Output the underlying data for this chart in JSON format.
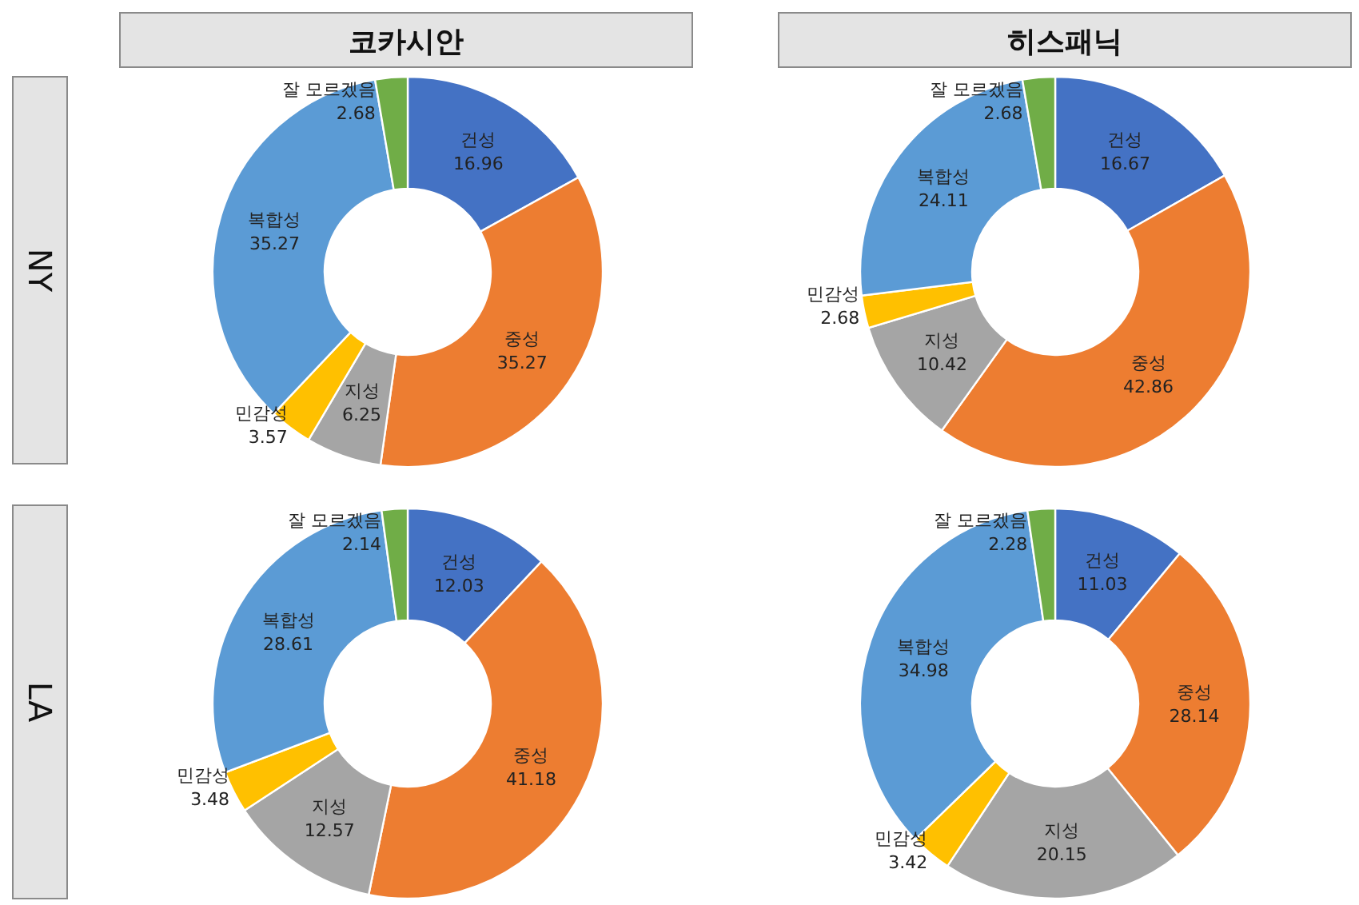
{
  "chart_data": [
    {
      "type": "donut",
      "title": "코카시안",
      "ylabel": "NY",
      "categories": [
        "건성",
        "중성",
        "지성",
        "민감성",
        "복합성",
        "잘 모르겠음"
      ],
      "values": [
        16.96,
        35.27,
        6.25,
        3.57,
        35.27,
        2.68
      ],
      "colors": [
        "#4472c4",
        "#ed7d31",
        "#a5a5a5",
        "#ffc000",
        "#5b9bd5",
        "#70ad47"
      ],
      "data_labels": true
    },
    {
      "type": "donut",
      "title": "히스패닉",
      "categories": [
        "건성",
        "중성",
        "지성",
        "민감성",
        "복합성",
        "잘 모르겠음"
      ],
      "values": [
        16.67,
        42.86,
        10.42,
        2.68,
        24.11,
        2.68
      ],
      "colors": [
        "#4472c4",
        "#ed7d31",
        "#a5a5a5",
        "#ffc000",
        "#5b9bd5",
        "#70ad47"
      ],
      "data_labels": true
    },
    {
      "type": "donut",
      "ylabel": "LA",
      "categories": [
        "건성",
        "중성",
        "지성",
        "민감성",
        "복합성",
        "잘 모르겠음"
      ],
      "values": [
        12.03,
        41.18,
        12.57,
        3.48,
        28.61,
        2.14
      ],
      "colors": [
        "#4472c4",
        "#ed7d31",
        "#a5a5a5",
        "#ffc000",
        "#5b9bd5",
        "#70ad47"
      ],
      "data_labels": true
    },
    {
      "type": "donut",
      "categories": [
        "건성",
        "중성",
        "지성",
        "민감성",
        "복합성",
        "잘 모르겠음"
      ],
      "values": [
        11.03,
        28.14,
        20.15,
        3.42,
        34.98,
        2.28
      ],
      "colors": [
        "#4472c4",
        "#ed7d31",
        "#a5a5a5",
        "#ffc000",
        "#5b9bd5",
        "#70ad47"
      ],
      "data_labels": true
    }
  ]
}
